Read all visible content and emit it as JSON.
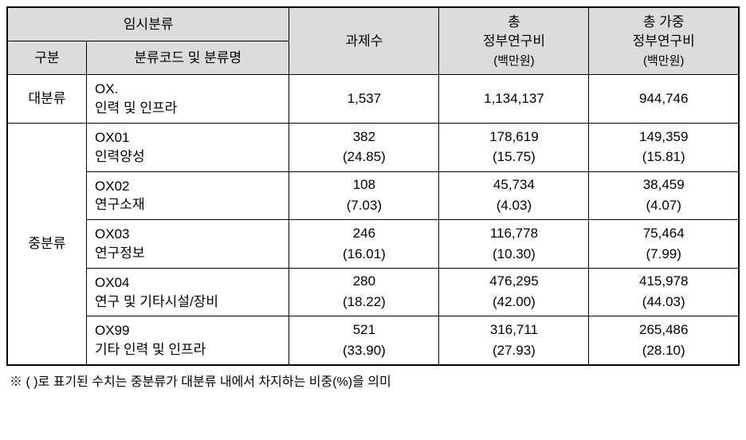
{
  "header": {
    "temp_class": "임시분류",
    "gubun": "구분",
    "code_name": "분류코드 및 분류명",
    "task_count": "과제수",
    "total_gov_line1": "총",
    "total_gov_line2": "정부연구비",
    "total_gov_unit": "(백만원)",
    "total_weighted_line1": "총 가중",
    "total_weighted_line2": "정부연구비",
    "total_weighted_unit": "(백만원)"
  },
  "rows": {
    "major": {
      "gubun": "대분류",
      "code_l1": "OX.",
      "code_l2": "인력 및 인프라",
      "count": "1,537",
      "gov": "1,134,137",
      "weighted": "944,746"
    },
    "mid_gubun": "중분류",
    "mid": [
      {
        "code_l1": "OX01",
        "code_l2": "인력양성",
        "count": "382",
        "count_pct": "(24.85)",
        "gov": "178,619",
        "gov_pct": "(15.75)",
        "weighted": "149,359",
        "weighted_pct": "(15.81)"
      },
      {
        "code_l1": "OX02",
        "code_l2": "연구소재",
        "count": "108",
        "count_pct": "(7.03)",
        "gov": "45,734",
        "gov_pct": "(4.03)",
        "weighted": "38,459",
        "weighted_pct": "(4.07)"
      },
      {
        "code_l1": "OX03",
        "code_l2": "연구정보",
        "count": "246",
        "count_pct": "(16.01)",
        "gov": "116,778",
        "gov_pct": "(10.30)",
        "weighted": "75,464",
        "weighted_pct": "(7.99)"
      },
      {
        "code_l1": "OX04",
        "code_l2": "연구 및 기타시설/장비",
        "count": "280",
        "count_pct": "(18.22)",
        "gov": "476,295",
        "gov_pct": "(42.00)",
        "weighted": "415,978",
        "weighted_pct": "(44.03)"
      },
      {
        "code_l1": "OX99",
        "code_l2": "기타 인력 및 인프라",
        "count": "521",
        "count_pct": "(33.90)",
        "gov": "316,711",
        "gov_pct": "(27.93)",
        "weighted": "265,486",
        "weighted_pct": "(28.10)"
      }
    ]
  },
  "footnote": "※ ( )로 표기된 수치는 중분류가 대분류 내에서 차지하는 비중(%)을 의미"
}
